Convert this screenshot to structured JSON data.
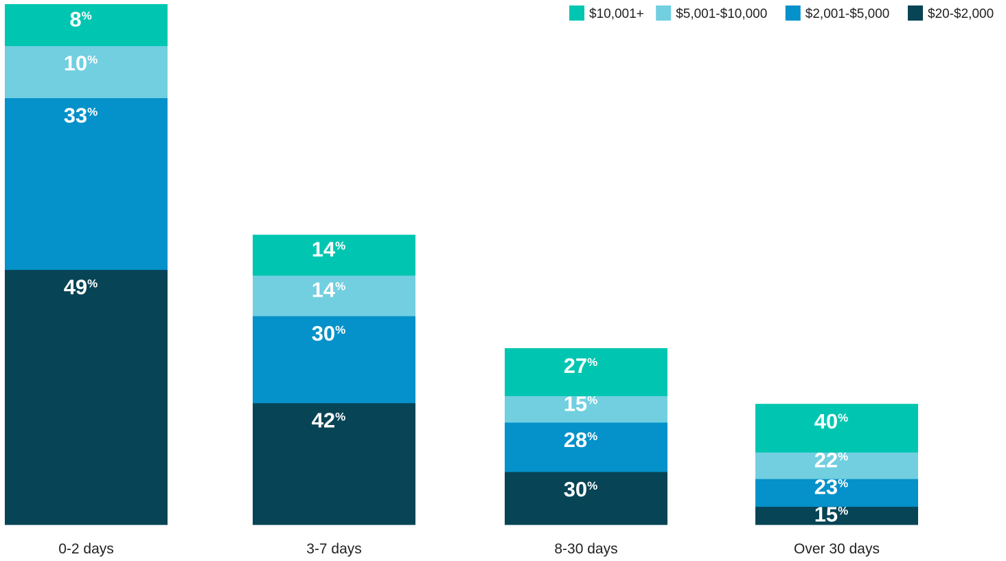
{
  "chart_data": {
    "type": "bar",
    "stacked": true,
    "categories": [
      "0-2 days",
      "3-7 days",
      "8-30 days",
      "Over 30 days"
    ],
    "series": [
      {
        "name": "$20-$2,000",
        "color": "#074455",
        "values": [
          49,
          42,
          30,
          15
        ]
      },
      {
        "name": "$2,001-$5,000",
        "color": "#0591c9",
        "values": [
          33,
          30,
          28,
          23
        ]
      },
      {
        "name": "$5,001-$10,000",
        "color": "#71cfe0",
        "values": [
          10,
          14,
          15,
          22
        ]
      },
      {
        "name": "$10,001+",
        "color": "#00c6b1",
        "values": [
          8,
          14,
          27,
          40
        ]
      }
    ],
    "legend_order": [
      "$10,001+",
      "$5,001-$10,000",
      "$2,001-$5,000",
      "$20-$2,000"
    ],
    "legend_position": "top-right",
    "value_suffix": "%",
    "grid": false,
    "relative_bar_heights": [
      1.0,
      0.557,
      0.339,
      0.232
    ]
  }
}
